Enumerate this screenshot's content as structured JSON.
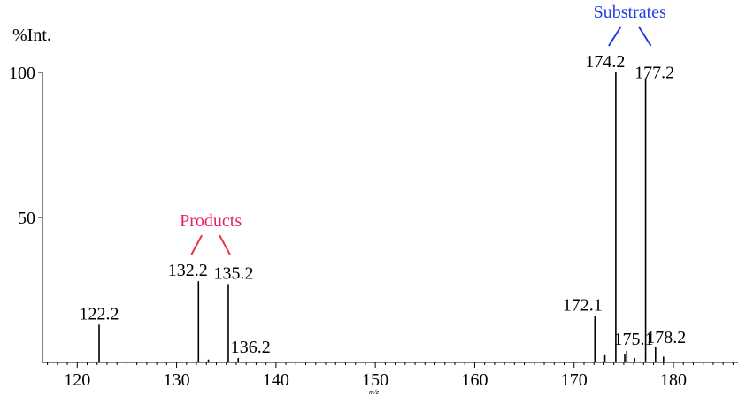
{
  "chart_data": {
    "type": "bar",
    "ylabel": "%Int.",
    "xlabel": "m/z",
    "xlim": [
      116.5,
      186.5
    ],
    "ylim": [
      0,
      100
    ],
    "x_ticks": [
      120,
      130,
      140,
      150,
      160,
      170,
      180
    ],
    "y_ticks": [
      50,
      100
    ],
    "peaks": [
      {
        "x": 122.2,
        "y": 13,
        "label": "122.2"
      },
      {
        "x": 132.2,
        "y": 28,
        "label": "132.2"
      },
      {
        "x": 133.2,
        "y": 1.0
      },
      {
        "x": 135.2,
        "y": 27,
        "label": "135.2"
      },
      {
        "x": 136.2,
        "y": 1.5,
        "label": "136.2"
      },
      {
        "x": 172.1,
        "y": 16,
        "label": "172.1"
      },
      {
        "x": 173.1,
        "y": 2.5
      },
      {
        "x": 174.2,
        "y": 100,
        "label": "174.2"
      },
      {
        "x": 175.1,
        "y": 3,
        "label": "175.1"
      },
      {
        "x": 175.3,
        "y": 4
      },
      {
        "x": 176.1,
        "y": 1.5
      },
      {
        "x": 177.2,
        "y": 98,
        "label": "177.2"
      },
      {
        "x": 178.2,
        "y": 5.5,
        "label": "178.2"
      },
      {
        "x": 179.0,
        "y": 2
      }
    ],
    "annotations": [
      {
        "text": "Products",
        "color": "#e8206c",
        "line_color": "#e8383c",
        "targets": [
          "132.2",
          "135.2"
        ]
      },
      {
        "text": "Substrates",
        "color": "#1f3fe0",
        "line_color": "#1f3fe0",
        "targets": [
          "174.2",
          "177.2"
        ]
      }
    ]
  }
}
